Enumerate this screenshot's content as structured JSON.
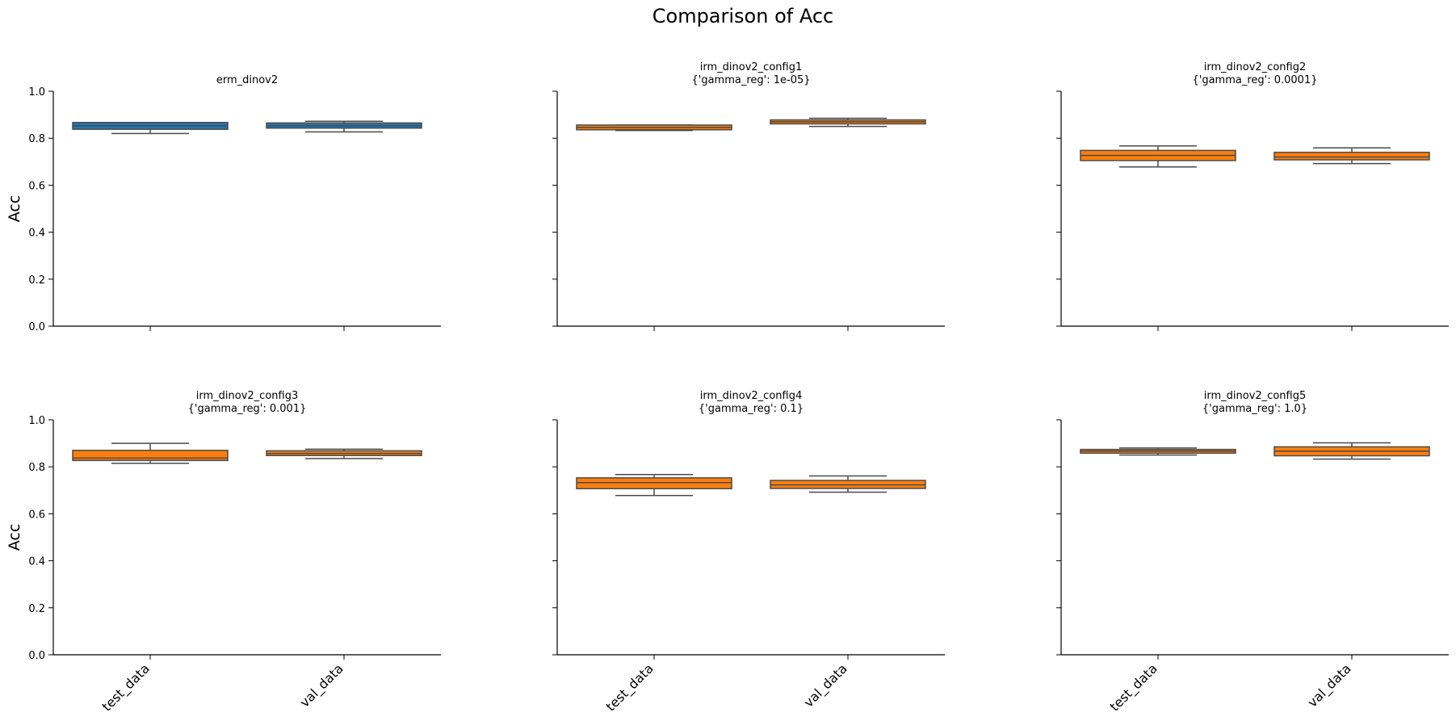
{
  "figure": {
    "title": "Comparison of Acc"
  },
  "chart_data": [
    {
      "type": "box",
      "title": "erm_dinov2",
      "subtitle": "",
      "ylabel": "Acc",
      "ylim": [
        0,
        1
      ],
      "yticks": [
        0.0,
        0.2,
        0.4,
        0.6,
        0.8,
        1.0
      ],
      "yticklabels": [
        "0.0",
        "0.2",
        "0.4",
        "0.6",
        "0.8",
        "1.0"
      ],
      "categories": [
        "test_data",
        "val_data"
      ],
      "color": "#1f77b4",
      "boxes": [
        {
          "category": "test_data",
          "whisker_low": 0.82,
          "q1": 0.838,
          "median": 0.853,
          "q3": 0.867,
          "whisker_high": 0.867
        },
        {
          "category": "val_data",
          "whisker_low": 0.827,
          "q1": 0.843,
          "median": 0.853,
          "q3": 0.865,
          "whisker_high": 0.872
        }
      ]
    },
    {
      "type": "box",
      "title": "irm_dinov2_config1",
      "subtitle": "{'gamma_reg': 1e-05}",
      "ylabel": "",
      "ylim": [
        0,
        1
      ],
      "yticks": [
        0.0,
        0.2,
        0.4,
        0.6,
        0.8,
        1.0
      ],
      "yticklabels": [
        "",
        "",
        "",
        "",
        "",
        ""
      ],
      "categories": [
        "test_data",
        "val_data"
      ],
      "color": "#ff7f0e",
      "boxes": [
        {
          "category": "test_data",
          "whisker_low": 0.833,
          "q1": 0.836,
          "median": 0.846,
          "q3": 0.856,
          "whisker_high": 0.856
        },
        {
          "category": "val_data",
          "whisker_low": 0.85,
          "q1": 0.861,
          "median": 0.87,
          "q3": 0.878,
          "whisker_high": 0.885
        }
      ]
    },
    {
      "type": "box",
      "title": "irm_dinov2_config2",
      "subtitle": "{'gamma_reg': 0.0001}",
      "ylabel": "",
      "ylim": [
        0,
        1
      ],
      "yticks": [
        0.0,
        0.2,
        0.4,
        0.6,
        0.8,
        1.0
      ],
      "yticklabels": [
        "",
        "",
        "",
        "",
        "",
        ""
      ],
      "categories": [
        "test_data",
        "val_data"
      ],
      "color": "#ff7f0e",
      "boxes": [
        {
          "category": "test_data",
          "whisker_low": 0.678,
          "q1": 0.705,
          "median": 0.727,
          "q3": 0.748,
          "whisker_high": 0.767
        },
        {
          "category": "val_data",
          "whisker_low": 0.692,
          "q1": 0.708,
          "median": 0.72,
          "q3": 0.74,
          "whisker_high": 0.759
        }
      ]
    },
    {
      "type": "box",
      "title": "irm_dinov2_config3",
      "subtitle": "{'gamma_reg': 0.001}",
      "ylabel": "Acc",
      "ylim": [
        0,
        1
      ],
      "yticks": [
        0.0,
        0.2,
        0.4,
        0.6,
        0.8,
        1.0
      ],
      "yticklabels": [
        "0.0",
        "0.2",
        "0.4",
        "0.6",
        "0.8",
        "1.0"
      ],
      "categories": [
        "test_data",
        "val_data"
      ],
      "color": "#ff7f0e",
      "boxes": [
        {
          "category": "test_data",
          "whisker_low": 0.815,
          "q1": 0.827,
          "median": 0.837,
          "q3": 0.87,
          "whisker_high": 0.9
        },
        {
          "category": "val_data",
          "whisker_low": 0.835,
          "q1": 0.848,
          "median": 0.857,
          "q3": 0.868,
          "whisker_high": 0.875
        }
      ]
    },
    {
      "type": "box",
      "title": "irm_dinov2_config4",
      "subtitle": "{'gamma_reg': 0.1}",
      "ylabel": "",
      "ylim": [
        0,
        1
      ],
      "yticks": [
        0.0,
        0.2,
        0.4,
        0.6,
        0.8,
        1.0
      ],
      "yticklabels": [
        "",
        "",
        "",
        "",
        "",
        ""
      ],
      "categories": [
        "test_data",
        "val_data"
      ],
      "color": "#ff7f0e",
      "boxes": [
        {
          "category": "test_data",
          "whisker_low": 0.678,
          "q1": 0.707,
          "median": 0.733,
          "q3": 0.753,
          "whisker_high": 0.767
        },
        {
          "category": "val_data",
          "whisker_low": 0.692,
          "q1": 0.708,
          "median": 0.723,
          "q3": 0.742,
          "whisker_high": 0.761
        }
      ]
    },
    {
      "type": "box",
      "title": "irm_dinov2_config5",
      "subtitle": "{'gamma_reg': 1.0}",
      "ylabel": "",
      "ylim": [
        0,
        1
      ],
      "yticks": [
        0.0,
        0.2,
        0.4,
        0.6,
        0.8,
        1.0
      ],
      "yticklabels": [
        "",
        "",
        "",
        "",
        "",
        ""
      ],
      "categories": [
        "test_data",
        "val_data"
      ],
      "color": "#ff7f0e",
      "boxes": [
        {
          "category": "test_data",
          "whisker_low": 0.85,
          "q1": 0.858,
          "median": 0.867,
          "q3": 0.874,
          "whisker_high": 0.88
        },
        {
          "category": "val_data",
          "whisker_low": 0.833,
          "q1": 0.847,
          "median": 0.867,
          "q3": 0.885,
          "whisker_high": 0.902
        }
      ]
    }
  ]
}
